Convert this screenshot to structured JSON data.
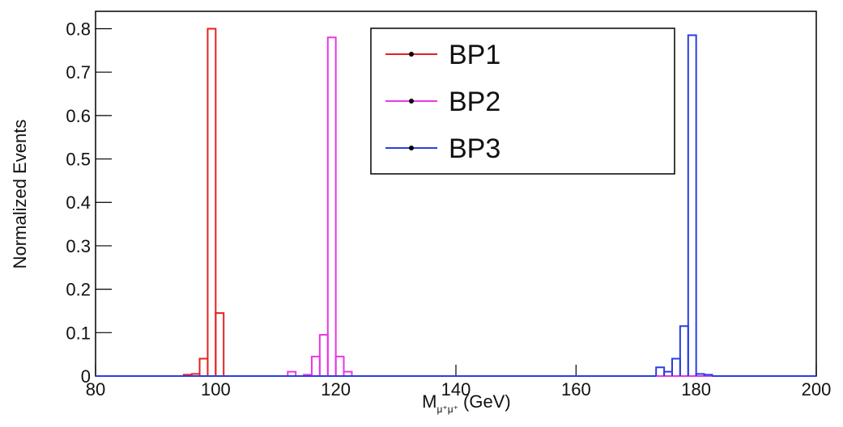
{
  "chart_data": {
    "type": "histogram",
    "xlabel": {
      "main": "M",
      "sub": "μ⁺μ⁺",
      "unit": "(GeV)"
    },
    "ylabel": "Normalized Events",
    "xlim": [
      80,
      200
    ],
    "ylim": [
      0,
      0.84
    ],
    "xticks": [
      80,
      100,
      120,
      140,
      160,
      180,
      200
    ],
    "yticks": [
      0,
      0.1,
      0.2,
      0.3,
      0.4,
      0.5,
      0.6,
      0.7,
      0.8
    ],
    "legend": "top-right",
    "bins": [
      80,
      81.33,
      82.67,
      84,
      85.33,
      86.67,
      88,
      89.33,
      90.67,
      92,
      93.33,
      94.67,
      96,
      97.33,
      98.67,
      100,
      101.33,
      102.67,
      104,
      105.33,
      106.67,
      108,
      109.33,
      110.67,
      112,
      113.33,
      114.67,
      116,
      117.33,
      118.67,
      120,
      121.33,
      122.67,
      124,
      125.33,
      126.67,
      128,
      129.33,
      130.67,
      132,
      133.33,
      134.67,
      136,
      137.33,
      138.67,
      140,
      141.33,
      142.67,
      144,
      145.33,
      146.67,
      148,
      149.33,
      150.67,
      152,
      153.33,
      154.67,
      156,
      157.33,
      158.67,
      160,
      161.33,
      162.67,
      164,
      165.33,
      166.67,
      168,
      169.33,
      170.67,
      172,
      173.33,
      174.67,
      176,
      177.33,
      178.67,
      180,
      181.33,
      182.67,
      184,
      185.33,
      186.67,
      188,
      189.33,
      190.67,
      192,
      193.33,
      194.67,
      196,
      197.33,
      198.67,
      200
    ],
    "series": [
      {
        "name": "BP1",
        "color": "#e8201e",
        "values": [
          0,
          0,
          0,
          0,
          0,
          0,
          0,
          0,
          0,
          0,
          0,
          0.003,
          0.005,
          0.04,
          0.8,
          0.145,
          0,
          0,
          0,
          0,
          0,
          0,
          0,
          0,
          0,
          0,
          0,
          0,
          0,
          0,
          0,
          0,
          0,
          0,
          0,
          0,
          0,
          0,
          0,
          0,
          0,
          0,
          0,
          0,
          0,
          0,
          0,
          0,
          0,
          0,
          0,
          0,
          0,
          0,
          0,
          0,
          0,
          0,
          0,
          0,
          0,
          0,
          0,
          0,
          0,
          0,
          0,
          0,
          0,
          0,
          0,
          0,
          0,
          0,
          0,
          0,
          0,
          0,
          0,
          0,
          0,
          0,
          0,
          0,
          0,
          0,
          0,
          0,
          0,
          0
        ]
      },
      {
        "name": "BP2",
        "color": "#e838e8",
        "values": [
          0,
          0,
          0,
          0,
          0,
          0,
          0,
          0,
          0,
          0,
          0,
          0,
          0,
          0,
          0,
          0,
          0,
          0,
          0,
          0,
          0,
          0,
          0,
          0,
          0.01,
          0,
          0.003,
          0.045,
          0.095,
          0.78,
          0.045,
          0.01,
          0,
          0,
          0,
          0,
          0,
          0,
          0,
          0,
          0,
          0,
          0,
          0,
          0,
          0,
          0,
          0,
          0,
          0,
          0,
          0,
          0,
          0,
          0,
          0,
          0,
          0,
          0,
          0,
          0,
          0,
          0,
          0,
          0,
          0,
          0,
          0,
          0,
          0,
          0,
          0,
          0,
          0,
          0,
          0,
          0,
          0,
          0,
          0,
          0,
          0,
          0,
          0,
          0,
          0,
          0,
          0,
          0,
          0
        ]
      },
      {
        "name": "BP3",
        "color": "#2a3ee0",
        "values": [
          0,
          0,
          0,
          0,
          0,
          0,
          0,
          0,
          0,
          0,
          0,
          0,
          0,
          0,
          0,
          0,
          0,
          0,
          0,
          0,
          0,
          0,
          0,
          0,
          0,
          0,
          0,
          0,
          0,
          0,
          0,
          0,
          0,
          0,
          0,
          0,
          0,
          0,
          0,
          0,
          0,
          0,
          0,
          0,
          0,
          0,
          0,
          0,
          0,
          0,
          0,
          0,
          0,
          0,
          0,
          0,
          0,
          0,
          0,
          0,
          0,
          0,
          0,
          0,
          0,
          0,
          0,
          0,
          0,
          0,
          0.02,
          0.01,
          0.04,
          0.115,
          0.785,
          0.005,
          0.003,
          0,
          0,
          0,
          0,
          0,
          0,
          0,
          0,
          0,
          0,
          0,
          0,
          0
        ]
      }
    ]
  }
}
